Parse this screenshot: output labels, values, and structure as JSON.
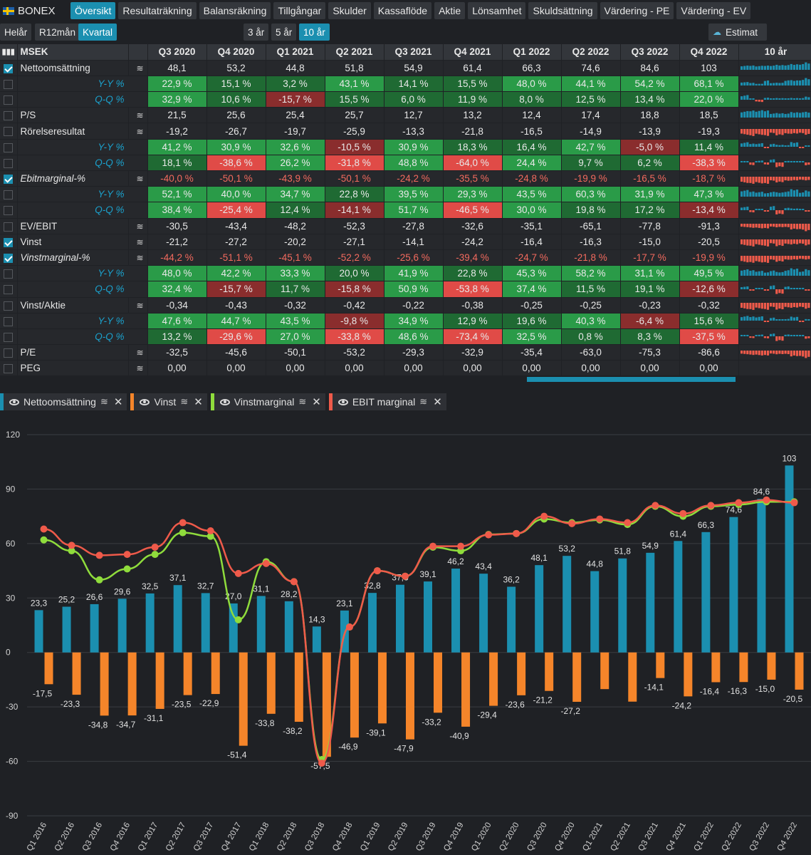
{
  "app": {
    "name": "BONEX"
  },
  "tabs": [
    "Översikt",
    "Resultaträkning",
    "Balansräkning",
    "Tillgångar",
    "Skulder",
    "Kassaflöde",
    "Aktie",
    "Lönsamhet",
    "Skuldsättning",
    "Värdering - PE",
    "Värdering - EV"
  ],
  "period_buttons": [
    "Helår",
    "R12mån",
    "Kvartal"
  ],
  "range_buttons": [
    "3 år",
    "5 år",
    "10 år"
  ],
  "estimat_label": "Estimat",
  "table": {
    "unit_header": "MSEK",
    "spark_header": "10 år",
    "columns": [
      "Q3 2020",
      "Q4 2020",
      "Q1 2021",
      "Q2 2021",
      "Q3 2021",
      "Q4 2021",
      "Q1 2022",
      "Q2 2022",
      "Q3 2022",
      "Q4 2022"
    ],
    "rows": [
      {
        "label": "Nettoomsättning",
        "checked": true,
        "values": [
          "48,1",
          "53,2",
          "44,8",
          "51,8",
          "54,9",
          "61,4",
          "66,3",
          "74,6",
          "84,6",
          "103"
        ]
      },
      {
        "label": "Y-Y %",
        "sub": true,
        "values": [
          "22,9 %",
          "15,1 %",
          "3,2 %",
          "43,1 %",
          "14,1 %",
          "15,5 %",
          "48,0 %",
          "44,1 %",
          "54,2 %",
          "68,1 %"
        ],
        "colors": [
          "g",
          "dg",
          "dg",
          "g",
          "dg",
          "dg",
          "g",
          "g",
          "g",
          "g"
        ]
      },
      {
        "label": "Q-Q %",
        "sub": true,
        "values": [
          "32,9 %",
          "10,6 %",
          "-15,7 %",
          "15,5 %",
          "6,0 %",
          "11,9 %",
          "8,0 %",
          "12,5 %",
          "13,4 %",
          "22,0 %"
        ],
        "colors": [
          "g",
          "dg",
          "dr",
          "dg",
          "dg",
          "dg",
          "dg",
          "dg",
          "dg",
          "g"
        ]
      },
      {
        "label": "P/S",
        "values": [
          "21,5",
          "25,6",
          "25,4",
          "25,7",
          "12,7",
          "13,2",
          "12,4",
          "17,4",
          "18,8",
          "18,5"
        ]
      },
      {
        "label": "Rörelseresultat",
        "values": [
          "-19,2",
          "-26,7",
          "-19,7",
          "-25,9",
          "-13,3",
          "-21,8",
          "-16,5",
          "-14,9",
          "-13,9",
          "-19,3"
        ]
      },
      {
        "label": "Y-Y %",
        "sub": true,
        "values": [
          "41,2 %",
          "30,9 %",
          "32,6 %",
          "-10,5 %",
          "30,9 %",
          "18,3 %",
          "16,4 %",
          "42,7 %",
          "-5,0 %",
          "11,4 %"
        ],
        "colors": [
          "g",
          "g",
          "g",
          "dr",
          "g",
          "dg",
          "dg",
          "g",
          "dr",
          "dg"
        ]
      },
      {
        "label": "Q-Q %",
        "sub": true,
        "values": [
          "18,1 %",
          "-38,6 %",
          "26,2 %",
          "-31,8 %",
          "48,8 %",
          "-64,0 %",
          "24,4 %",
          "9,7 %",
          "6,2 %",
          "-38,3 %"
        ],
        "colors": [
          "dg",
          "r",
          "g",
          "r",
          "g",
          "r",
          "g",
          "dg",
          "dg",
          "r"
        ]
      },
      {
        "label": "Ebitmarginal-%",
        "checked": true,
        "italic": true,
        "neg": true,
        "values": [
          "-40,0 %",
          "-50,1 %",
          "-43,9 %",
          "-50,1 %",
          "-24,2 %",
          "-35,5 %",
          "-24,8 %",
          "-19,9 %",
          "-16,5 %",
          "-18,7 %"
        ]
      },
      {
        "label": "Y-Y %",
        "sub": true,
        "values": [
          "52,1 %",
          "40,0 %",
          "34,7 %",
          "22,8 %",
          "39,5 %",
          "29,3 %",
          "43,5 %",
          "60,3 %",
          "31,9 %",
          "47,3 %"
        ],
        "colors": [
          "g",
          "g",
          "g",
          "dg",
          "g",
          "g",
          "g",
          "g",
          "g",
          "g"
        ]
      },
      {
        "label": "Q-Q %",
        "sub": true,
        "values": [
          "38,4 %",
          "-25,4 %",
          "12,4 %",
          "-14,1 %",
          "51,7 %",
          "-46,5 %",
          "30,0 %",
          "19,8 %",
          "17,2 %",
          "-13,4 %"
        ],
        "colors": [
          "g",
          "r",
          "dg",
          "dr",
          "g",
          "r",
          "g",
          "dg",
          "dg",
          "dr"
        ]
      },
      {
        "label": "EV/EBIT",
        "values": [
          "-30,5",
          "-43,4",
          "-48,2",
          "-52,3",
          "-27,8",
          "-32,6",
          "-35,1",
          "-65,1",
          "-77,8",
          "-91,3"
        ]
      },
      {
        "label": "Vinst",
        "checked": true,
        "values": [
          "-21,2",
          "-27,2",
          "-20,2",
          "-27,1",
          "-14,1",
          "-24,2",
          "-16,4",
          "-16,3",
          "-15,0",
          "-20,5"
        ]
      },
      {
        "label": "Vinstmarginal-%",
        "checked": true,
        "italic": true,
        "neg": true,
        "values": [
          "-44,2 %",
          "-51,1 %",
          "-45,1 %",
          "-52,2 %",
          "-25,6 %",
          "-39,4 %",
          "-24,7 %",
          "-21,8 %",
          "-17,7 %",
          "-19,9 %"
        ]
      },
      {
        "label": "Y-Y %",
        "sub": true,
        "values": [
          "48,0 %",
          "42,2 %",
          "33,3 %",
          "20,0 %",
          "41,9 %",
          "22,8 %",
          "45,3 %",
          "58,2 %",
          "31,1 %",
          "49,5 %"
        ],
        "colors": [
          "g",
          "g",
          "g",
          "dg",
          "g",
          "dg",
          "g",
          "g",
          "g",
          "g"
        ]
      },
      {
        "label": "Q-Q %",
        "sub": true,
        "values": [
          "32,4 %",
          "-15,7 %",
          "11,7 %",
          "-15,8 %",
          "50,9 %",
          "-53,8 %",
          "37,4 %",
          "11,5 %",
          "19,1 %",
          "-12,6 %"
        ],
        "colors": [
          "g",
          "dr",
          "dg",
          "dr",
          "g",
          "r",
          "g",
          "dg",
          "dg",
          "dr"
        ]
      },
      {
        "label": "Vinst/Aktie",
        "values": [
          "-0,34",
          "-0,43",
          "-0,32",
          "-0,42",
          "-0,22",
          "-0,38",
          "-0,25",
          "-0,25",
          "-0,23",
          "-0,32"
        ]
      },
      {
        "label": "Y-Y %",
        "sub": true,
        "values": [
          "47,6 %",
          "44,7 %",
          "43,5 %",
          "-9,8 %",
          "34,9 %",
          "12,9 %",
          "19,6 %",
          "40,3 %",
          "-6,4 %",
          "15,6 %"
        ],
        "colors": [
          "g",
          "g",
          "g",
          "dr",
          "g",
          "dg",
          "dg",
          "g",
          "dr",
          "dg"
        ]
      },
      {
        "label": "Q-Q %",
        "sub": true,
        "values": [
          "13,2 %",
          "-29,6 %",
          "27,0 %",
          "-33,8 %",
          "48,6 %",
          "-73,4 %",
          "32,5 %",
          "0,8 %",
          "8,3 %",
          "-37,5 %"
        ],
        "colors": [
          "dg",
          "r",
          "g",
          "r",
          "g",
          "r",
          "g",
          "dg",
          "dg",
          "r"
        ]
      },
      {
        "label": "P/E",
        "values": [
          "-32,5",
          "-45,6",
          "-50,1",
          "-53,2",
          "-29,3",
          "-32,9",
          "-35,4",
          "-63,0",
          "-75,3",
          "-86,6"
        ]
      },
      {
        "label": "PEG",
        "values": [
          "0,00",
          "0,00",
          "0,00",
          "0,00",
          "0,00",
          "0,00",
          "0,00",
          "0,00",
          "0,00",
          "0,00"
        ]
      }
    ]
  },
  "legend": [
    {
      "label": "Nettoomsättning",
      "color": "#1b8fb0"
    },
    {
      "label": "Vinst",
      "color": "#f5852a"
    },
    {
      "label": "Vinstmarginal",
      "color": "#8fdc3c"
    },
    {
      "label": "EBIT marginal",
      "color": "#ef5a4a"
    }
  ],
  "chart_data": {
    "type": "bar",
    "categories": [
      "Q1 2016",
      "Q2 2016",
      "Q3 2016",
      "Q4 2016",
      "Q1 2017",
      "Q2 2017",
      "Q3 2017",
      "Q4 2017",
      "Q1 2018",
      "Q2 2018",
      "Q3 2018",
      "Q4 2018",
      "Q1 2019",
      "Q2 2019",
      "Q3 2019",
      "Q4 2019",
      "Q1 2020",
      "Q2 2020",
      "Q3 2020",
      "Q4 2020",
      "Q1 2021",
      "Q2 2021",
      "Q3 2021",
      "Q4 2021",
      "Q1 2022",
      "Q2 2022",
      "Q3 2022",
      "Q4 2022"
    ],
    "ylim": [
      -90,
      120
    ],
    "yticks": [
      120,
      90,
      60,
      30,
      0,
      -30,
      -60,
      -90
    ],
    "series": [
      {
        "name": "Nettoomsättning",
        "type": "bar",
        "color": "#1b8fb0",
        "values": [
          23.3,
          25.2,
          26.6,
          29.6,
          32.5,
          37.1,
          32.7,
          27.0,
          31.1,
          28.2,
          14.3,
          23.1,
          32.8,
          37.3,
          39.1,
          46.2,
          43.4,
          36.2,
          48.1,
          53.2,
          44.8,
          51.8,
          54.9,
          61.4,
          66.3,
          74.6,
          84.6,
          103
        ],
        "labels": [
          "23,3",
          "25,2",
          "26,6",
          "29,6",
          "32,5",
          "37,1",
          "32,7",
          "27,0",
          "31,1",
          "28,2",
          "14,3",
          "23,1",
          "32,8",
          "37,3",
          "39,1",
          "46,2",
          "43,4",
          "36,2",
          "48,1",
          "53,2",
          "44,8",
          "51,8",
          "54,9",
          "61,4",
          "66,3",
          "74,6",
          "84,6",
          "103"
        ]
      },
      {
        "name": "Vinst",
        "type": "bar",
        "color": "#f5852a",
        "values": [
          -17.5,
          -23.3,
          -34.8,
          -34.7,
          -31.1,
          -23.5,
          -22.9,
          -51.4,
          -33.8,
          -38.2,
          -57.5,
          -46.9,
          -39.1,
          -47.9,
          -33.2,
          -40.9,
          -29.4,
          -23.6,
          -21.2,
          -27.2,
          -20.2,
          -27.1,
          -14.1,
          -24.2,
          -16.4,
          -16.3,
          -15.0,
          -20.5
        ],
        "labels": [
          "-17,5",
          "-23,3",
          "-34,8",
          "-34,7",
          "-31,1",
          "-23,5",
          "-22,9",
          "-51,4",
          "-33,8",
          "-38,2",
          "-57,5",
          "-46,9",
          "-39,1",
          "-47,9",
          "-33,2",
          "-40,9",
          "-29,4",
          "-23,6",
          "-21,2",
          "-27,2",
          "",
          "",
          "-14,1",
          "-24,2",
          "-16,4",
          "-16,3",
          "-15,0",
          "-20,5"
        ]
      },
      {
        "name": "Vinstmarginal",
        "type": "line",
        "color": "#8fdc3c",
        "values": [
          62,
          56,
          40,
          46,
          54,
          66,
          64,
          18,
          50,
          39,
          -59,
          14,
          45,
          42,
          58,
          56,
          65,
          65.5,
          73.5,
          71.5,
          73,
          70.5,
          80.5,
          75,
          80.5,
          81.5,
          83,
          83
        ]
      },
      {
        "name": "EBIT marginal",
        "type": "line",
        "color": "#ef5a4a",
        "values": [
          68,
          59,
          53.5,
          54,
          58,
          71.5,
          67,
          43.5,
          49,
          39,
          -61,
          14,
          45,
          42,
          58.5,
          58.5,
          64.8,
          65.5,
          75,
          71,
          73.5,
          71.5,
          81,
          76.5,
          81,
          82.5,
          84,
          82.5
        ]
      }
    ]
  }
}
